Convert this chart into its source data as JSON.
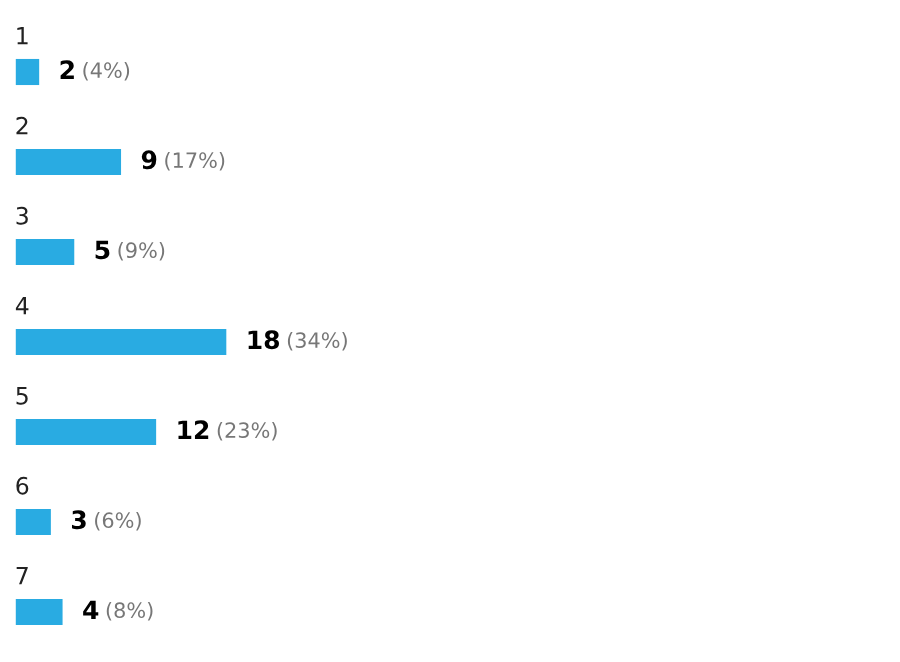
{
  "chart_data": {
    "type": "bar",
    "orientation": "horizontal",
    "categories": [
      "1",
      "2",
      "3",
      "4",
      "5",
      "6",
      "7"
    ],
    "values": [
      2,
      9,
      5,
      18,
      12,
      3,
      4
    ],
    "value_labels": [
      "2 (4%)",
      "9 (17%)",
      "5 (9%)",
      "18 (34%)",
      "12 (23%)",
      "3 (6%)",
      "4 (8%)"
    ],
    "color": "#29abe2"
  }
}
